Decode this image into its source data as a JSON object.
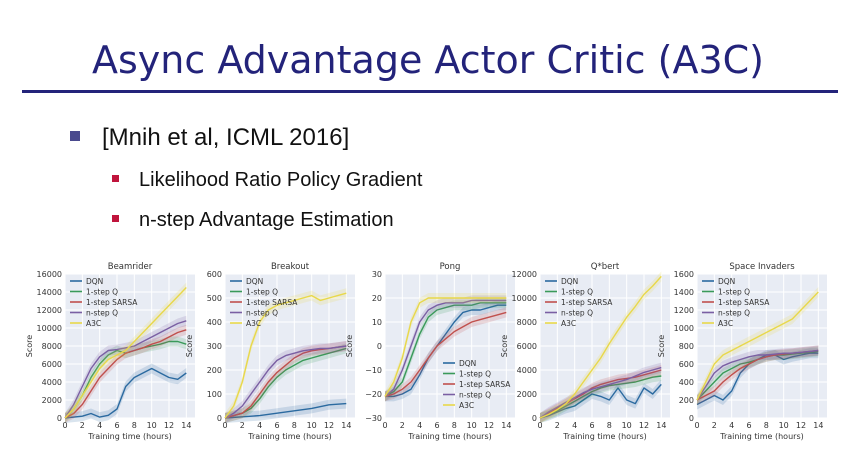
{
  "slide": {
    "title": "Async Advantage Actor Critic (A3C)",
    "bullets": [
      {
        "text": "[Mnih et al, ICML 2016]",
        "level": 1
      },
      {
        "text": "Likelihood Ratio Policy Gradient",
        "level": 2
      },
      {
        "text": "n-step Advantage Estimation",
        "level": 2
      }
    ]
  },
  "colors": {
    "title": "#23237a",
    "DQN": "#2b6aa0",
    "1-step Q": "#3a9a5a",
    "1-step SARSA": "#c0504d",
    "n-step Q": "#7a5fa3",
    "A3C": "#e8d84a",
    "plot_bg": "#e8ecf4"
  },
  "chart_data": [
    {
      "type": "line",
      "title": "Beamrider",
      "xlabel": "Training time (hours)",
      "ylabel": "Score",
      "xlim": [
        0,
        15
      ],
      "ylim": [
        0,
        16000
      ],
      "xticks": [
        0,
        2,
        4,
        6,
        8,
        10,
        12,
        14
      ],
      "yticks": [
        0,
        2000,
        4000,
        6000,
        8000,
        10000,
        12000,
        14000,
        16000
      ],
      "ytick_labels": [
        "0",
        "2000",
        "4000",
        "6000",
        "8000",
        "10000",
        "12000",
        "14000",
        "16000"
      ],
      "legend": "top-left",
      "series": [
        {
          "name": "DQN",
          "x": [
            0,
            2,
            3,
            4,
            5,
            6,
            7,
            8,
            9,
            10,
            11,
            12,
            13,
            14
          ],
          "y": [
            0,
            200,
            500,
            100,
            300,
            1000,
            3500,
            4500,
            5000,
            5500,
            5000,
            4500,
            4300,
            5000
          ]
        },
        {
          "name": "1-step Q",
          "x": [
            0,
            1,
            2,
            3,
            4,
            5,
            6,
            7,
            8,
            9,
            10,
            11,
            12,
            13,
            14
          ],
          "y": [
            0,
            1000,
            2500,
            4500,
            6000,
            7000,
            7500,
            7200,
            7500,
            7800,
            8000,
            8200,
            8500,
            8500,
            8200
          ]
        },
        {
          "name": "1-step SARSA",
          "x": [
            0,
            1,
            2,
            3,
            4,
            5,
            6,
            7,
            8,
            9,
            10,
            11,
            12,
            13,
            14
          ],
          "y": [
            0,
            500,
            1500,
            3000,
            4500,
            5500,
            6500,
            7200,
            7500,
            7800,
            8200,
            8500,
            9000,
            9500,
            9800
          ]
        },
        {
          "name": "n-step Q",
          "x": [
            0,
            1,
            2,
            3,
            4,
            5,
            6,
            7,
            8,
            9,
            10,
            11,
            12,
            13,
            14
          ],
          "y": [
            0,
            1500,
            3500,
            5500,
            6800,
            7500,
            7600,
            7800,
            8000,
            8500,
            9000,
            9500,
            10000,
            10500,
            10800
          ]
        },
        {
          "name": "A3C",
          "x": [
            0,
            1,
            2,
            3,
            4,
            5,
            6,
            7,
            8,
            9,
            10,
            11,
            12,
            13,
            14
          ],
          "y": [
            0,
            1000,
            2500,
            4000,
            5500,
            6500,
            7000,
            7500,
            8500,
            9500,
            10500,
            11500,
            12500,
            13500,
            14500
          ]
        }
      ]
    },
    {
      "type": "line",
      "title": "Breakout",
      "xlabel": "Training time (hours)",
      "ylabel": "Score",
      "xlim": [
        0,
        15
      ],
      "ylim": [
        0,
        600
      ],
      "xticks": [
        0,
        2,
        4,
        6,
        8,
        10,
        12,
        14
      ],
      "yticks": [
        0,
        100,
        200,
        300,
        400,
        500,
        600
      ],
      "ytick_labels": [
        "0",
        "100",
        "200",
        "300",
        "400",
        "500",
        "600"
      ],
      "legend": "top-left",
      "series": [
        {
          "name": "DQN",
          "x": [
            0,
            2,
            4,
            6,
            8,
            10,
            12,
            14
          ],
          "y": [
            0,
            5,
            10,
            20,
            30,
            40,
            55,
            60
          ]
        },
        {
          "name": "1-step Q",
          "x": [
            0,
            1,
            2,
            3,
            4,
            5,
            6,
            7,
            8,
            9,
            10,
            11,
            12,
            13,
            14
          ],
          "y": [
            0,
            10,
            20,
            40,
            80,
            130,
            170,
            200,
            220,
            240,
            250,
            260,
            270,
            280,
            290
          ]
        },
        {
          "name": "1-step SARSA",
          "x": [
            0,
            1,
            2,
            3,
            4,
            5,
            6,
            7,
            8,
            9,
            10,
            11,
            12,
            13,
            14
          ],
          "y": [
            0,
            10,
            20,
            50,
            100,
            150,
            190,
            220,
            250,
            270,
            280,
            285,
            290,
            295,
            300
          ]
        },
        {
          "name": "n-step Q",
          "x": [
            0,
            1,
            2,
            3,
            4,
            5,
            6,
            7,
            8,
            9,
            10,
            11,
            12,
            13,
            14
          ],
          "y": [
            0,
            20,
            50,
            100,
            150,
            200,
            240,
            260,
            270,
            280,
            285,
            290,
            290,
            295,
            300
          ]
        },
        {
          "name": "A3C",
          "x": [
            0,
            1,
            2,
            3,
            4,
            5,
            6,
            7,
            8,
            9,
            10,
            11,
            12,
            13,
            14
          ],
          "y": [
            0,
            50,
            150,
            300,
            400,
            450,
            470,
            480,
            490,
            500,
            510,
            490,
            500,
            510,
            520
          ]
        }
      ]
    },
    {
      "type": "line",
      "title": "Pong",
      "xlabel": "Training time (hours)",
      "ylabel": "Score",
      "xlim": [
        0,
        15
      ],
      "ylim": [
        -30,
        30
      ],
      "xticks": [
        0,
        2,
        4,
        6,
        8,
        10,
        12,
        14
      ],
      "yticks": [
        -30,
        -20,
        -10,
        0,
        10,
        20,
        30
      ],
      "ytick_labels": [
        "−30",
        "−20",
        "−10",
        "0",
        "10",
        "20",
        "30"
      ],
      "legend": "bottom-right",
      "series": [
        {
          "name": "DQN",
          "x": [
            0,
            1,
            2,
            3,
            4,
            5,
            6,
            7,
            8,
            9,
            10,
            11,
            12,
            13,
            14
          ],
          "y": [
            -21,
            -21,
            -20,
            -18,
            -12,
            -5,
            0,
            5,
            10,
            14,
            15,
            15,
            16,
            17,
            17
          ]
        },
        {
          "name": "1-step Q",
          "x": [
            0,
            1,
            2,
            3,
            4,
            5,
            6,
            7,
            8,
            9,
            10,
            11,
            12,
            13,
            14
          ],
          "y": [
            -21,
            -19,
            -15,
            -5,
            5,
            12,
            15,
            16,
            17,
            17,
            17,
            18,
            18,
            18,
            18
          ]
        },
        {
          "name": "1-step SARSA",
          "x": [
            0,
            1,
            2,
            3,
            4,
            5,
            6,
            7,
            8,
            9,
            10,
            11,
            12,
            13,
            14
          ],
          "y": [
            -21,
            -20,
            -18,
            -15,
            -10,
            -5,
            0,
            3,
            6,
            8,
            10,
            11,
            12,
            13,
            14
          ]
        },
        {
          "name": "n-step Q",
          "x": [
            0,
            1,
            2,
            3,
            4,
            5,
            6,
            7,
            8,
            9,
            10,
            11,
            12,
            13,
            14
          ],
          "y": [
            -21,
            -18,
            -10,
            0,
            10,
            15,
            17,
            18,
            18,
            18,
            19,
            19,
            19,
            19,
            19
          ]
        },
        {
          "name": "A3C",
          "x": [
            0,
            1,
            2,
            3,
            4,
            5,
            6,
            7,
            8,
            9,
            10,
            11,
            12,
            13,
            14
          ],
          "y": [
            -21,
            -15,
            -5,
            10,
            18,
            20,
            20,
            20,
            20,
            20,
            20,
            20,
            20,
            20,
            20
          ]
        }
      ]
    },
    {
      "type": "line",
      "title": "Q*bert",
      "xlabel": "Training time (hours)",
      "ylabel": "Score",
      "xlim": [
        0,
        15
      ],
      "ylim": [
        0,
        12000
      ],
      "xticks": [
        0,
        2,
        4,
        6,
        8,
        10,
        12,
        14
      ],
      "yticks": [
        0,
        2000,
        4000,
        6000,
        8000,
        10000,
        12000
      ],
      "ytick_labels": [
        "0",
        "2000",
        "4000",
        "6000",
        "8000",
        "10000",
        "12000"
      ],
      "legend": "top-left",
      "series": [
        {
          "name": "DQN",
          "x": [
            0,
            1,
            2,
            3,
            4,
            5,
            6,
            7,
            8,
            9,
            10,
            11,
            12,
            13,
            14
          ],
          "y": [
            0,
            200,
            500,
            800,
            1000,
            1500,
            2000,
            1800,
            1500,
            2500,
            1500,
            1200,
            2500,
            2000,
            2800
          ]
        },
        {
          "name": "1-step Q",
          "x": [
            0,
            1,
            2,
            3,
            4,
            5,
            6,
            7,
            8,
            9,
            10,
            11,
            12,
            13,
            14
          ],
          "y": [
            0,
            300,
            600,
            1000,
            1400,
            1800,
            2200,
            2500,
            2700,
            2800,
            2900,
            3000,
            3200,
            3400,
            3500
          ]
        },
        {
          "name": "1-step SARSA",
          "x": [
            0,
            1,
            2,
            3,
            4,
            5,
            6,
            7,
            8,
            9,
            10,
            11,
            12,
            13,
            14
          ],
          "y": [
            0,
            400,
            800,
            1200,
            1600,
            2000,
            2500,
            2800,
            3000,
            3200,
            3300,
            3400,
            3600,
            3800,
            4000
          ]
        },
        {
          "name": "n-step Q",
          "x": [
            0,
            1,
            2,
            3,
            4,
            5,
            6,
            7,
            8,
            9,
            10,
            11,
            12,
            13,
            14
          ],
          "y": [
            0,
            500,
            900,
            1300,
            1700,
            2100,
            2400,
            2600,
            2800,
            3000,
            3200,
            3500,
            3800,
            4000,
            4200
          ]
        },
        {
          "name": "A3C",
          "x": [
            0,
            1,
            2,
            3,
            4,
            5,
            6,
            7,
            8,
            9,
            10,
            11,
            12,
            13,
            14
          ],
          "y": [
            0,
            300,
            700,
            1200,
            2000,
            3000,
            4000,
            5000,
            6200,
            7300,
            8400,
            9300,
            10300,
            11000,
            11800
          ]
        }
      ]
    },
    {
      "type": "line",
      "title": "Space Invaders",
      "xlabel": "Training time (hours)",
      "ylabel": "Score",
      "xlim": [
        0,
        15
      ],
      "ylim": [
        0,
        1600
      ],
      "xticks": [
        0,
        2,
        4,
        6,
        8,
        10,
        12,
        14
      ],
      "yticks": [
        0,
        200,
        400,
        600,
        800,
        1000,
        1200,
        1400,
        1600
      ],
      "ytick_labels": [
        "0",
        "200",
        "400",
        "600",
        "800",
        "1000",
        "1200",
        "1400",
        "1600"
      ],
      "legend": "top-left",
      "series": [
        {
          "name": "DQN",
          "x": [
            0,
            1,
            2,
            3,
            4,
            5,
            6,
            7,
            8,
            9,
            10,
            11,
            12,
            13,
            14
          ],
          "y": [
            150,
            200,
            250,
            200,
            300,
            500,
            600,
            650,
            700,
            700,
            650,
            680,
            700,
            720,
            720
          ]
        },
        {
          "name": "1-step Q",
          "x": [
            0,
            1,
            2,
            3,
            4,
            5,
            6,
            7,
            8,
            9,
            10,
            11,
            12,
            13,
            14
          ],
          "y": [
            200,
            300,
            400,
            500,
            550,
            600,
            620,
            650,
            680,
            700,
            700,
            710,
            720,
            730,
            740
          ]
        },
        {
          "name": "1-step SARSA",
          "x": [
            0,
            1,
            2,
            3,
            4,
            5,
            6,
            7,
            8,
            9,
            10,
            11,
            12,
            13,
            14
          ],
          "y": [
            200,
            250,
            300,
            400,
            480,
            550,
            600,
            650,
            680,
            700,
            710,
            720,
            730,
            740,
            750
          ]
        },
        {
          "name": "n-step Q",
          "x": [
            0,
            1,
            2,
            3,
            4,
            5,
            6,
            7,
            8,
            9,
            10,
            11,
            12,
            13,
            14
          ],
          "y": [
            200,
            350,
            500,
            580,
            620,
            650,
            680,
            700,
            700,
            710,
            720,
            720,
            730,
            740,
            750
          ]
        },
        {
          "name": "A3C",
          "x": [
            0,
            1,
            2,
            3,
            4,
            5,
            6,
            7,
            8,
            9,
            10,
            11,
            12,
            13,
            14
          ],
          "y": [
            200,
            400,
            600,
            700,
            750,
            800,
            850,
            900,
            950,
            1000,
            1050,
            1100,
            1200,
            1300,
            1400
          ]
        }
      ]
    }
  ]
}
